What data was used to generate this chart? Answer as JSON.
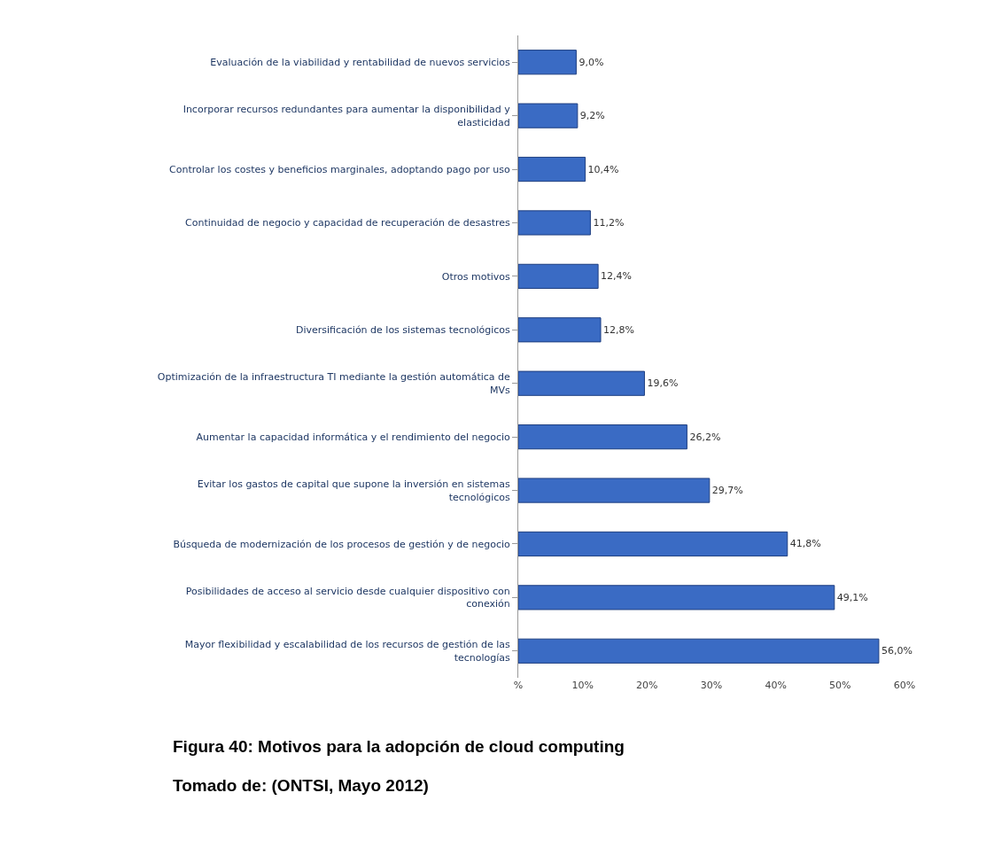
{
  "chart_data": {
    "type": "bar",
    "orientation": "horizontal",
    "categories": [
      "Evaluación de la viabilidad y rentabilidad de nuevos servicios",
      "Incorporar recursos redundantes para aumentar la disponibilidad y elasticidad",
      "Controlar los costes y beneficios marginales, adoptando pago por uso",
      "Continuidad de negocio y capacidad de recuperación de desastres",
      "Otros motivos",
      "Diversificación de los sistemas tecnológicos",
      "Optimización de la infraestructura TI mediante la gestión automática de MVs",
      "Aumentar la capacidad informática y el rendimiento del negocio",
      "Evitar los gastos de capital que supone la inversión en sistemas tecnológicos",
      "Búsqueda de modernización de los procesos de gestión y de negocio",
      "Posibilidades de acceso al servicio desde cualquier dispositivo con conexión",
      "Mayor flexibilidad y escalabilidad de los recursos de gestión de las tecnologías"
    ],
    "values": [
      9.0,
      9.2,
      10.4,
      11.2,
      12.4,
      12.8,
      19.6,
      26.2,
      29.7,
      41.8,
      49.1,
      56.0
    ],
    "value_labels": [
      "9,0%",
      "9,2%",
      "10,4%",
      "11,2%",
      "12,4%",
      "12,8%",
      "19,6%",
      "26,2%",
      "29,7%",
      "41,8%",
      "49,1%",
      "56,0%"
    ],
    "color": "#3a6bc4",
    "xlim": [
      0,
      60
    ],
    "xticks": [
      {
        "value": 0,
        "label": "%"
      },
      {
        "value": 10,
        "label": "10%"
      },
      {
        "value": 20,
        "label": "20%"
      },
      {
        "value": 30,
        "label": "30%"
      },
      {
        "value": 40,
        "label": "40%"
      },
      {
        "value": 50,
        "label": "50%"
      },
      {
        "value": 60,
        "label": "60%"
      }
    ],
    "grid": false,
    "annotations": [
      "Figura 40: Motivos para la adopción de cloud computing",
      "Tomado de: (ONTSI, Mayo 2012)"
    ]
  }
}
